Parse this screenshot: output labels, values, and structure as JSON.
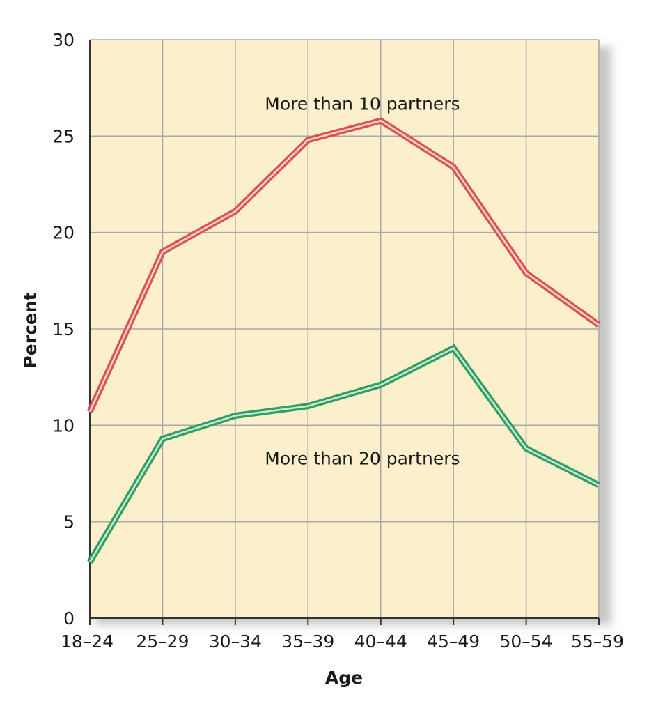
{
  "chart_data": {
    "type": "line",
    "title": "",
    "xlabel": "Age",
    "ylabel": "Percent",
    "categories": [
      "18–24",
      "25–29",
      "30–34",
      "35–39",
      "40–44",
      "45–49",
      "50–54",
      "55–59"
    ],
    "ylim": [
      0,
      30
    ],
    "yticks": [
      "0",
      "5",
      "10",
      "15",
      "20",
      "25",
      "30"
    ],
    "grid": true,
    "series": [
      {
        "name": "More than 10 partners",
        "values": [
          10.7,
          19.0,
          21.1,
          24.8,
          25.8,
          23.4,
          17.9,
          15.2
        ],
        "color": "#d9534f",
        "label_anchor_category": "35–39",
        "label_anchor_value": 26.7
      },
      {
        "name": "More than 20 partners",
        "values": [
          2.9,
          9.3,
          10.5,
          11.0,
          12.1,
          14.0,
          8.8,
          6.9
        ],
        "color": "#2e9e62",
        "label_anchor_category": "35–39",
        "label_anchor_value": 8.3
      }
    ],
    "colors": {
      "plot_background": "#fcefcc",
      "grid": "#a9a9a9",
      "shadow": "#c8c8c8",
      "axis": "#333333"
    }
  }
}
